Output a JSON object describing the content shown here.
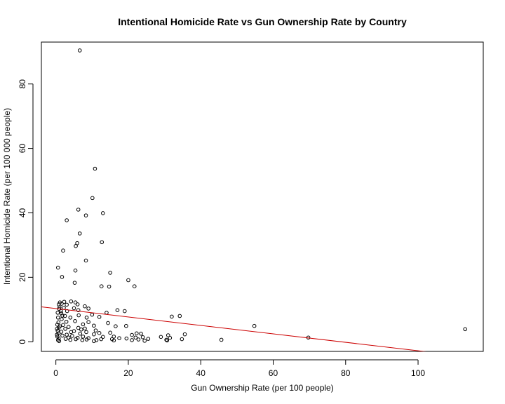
{
  "chart_data": {
    "type": "scatter",
    "title": "Intentional Homicide Rate vs Gun Ownership Rate by Country",
    "xlabel": "Gun Ownership Rate (per 100 people)",
    "ylabel": "Intentional Homicide Rate (per 100 000 people)",
    "xlim": [
      -4,
      118
    ],
    "ylim": [
      -3,
      93
    ],
    "x_ticks": [
      0,
      20,
      40,
      60,
      80,
      100
    ],
    "y_ticks": [
      0,
      20,
      40,
      60,
      80
    ],
    "x_tick_labels": [
      "0",
      "20",
      "40",
      "60",
      "80",
      "100"
    ],
    "y_tick_labels": [
      "0",
      "20",
      "40",
      "60",
      "80"
    ],
    "grid": false,
    "legend": "none",
    "point_color": "#000000",
    "regression_color": "#cc0000",
    "regression_line": {
      "intercept": 10.3,
      "slope": -0.131
    },
    "points": [
      [
        6.6,
        90.4
      ],
      [
        10.8,
        53.7
      ],
      [
        10.1,
        44.6
      ],
      [
        6.2,
        41.0
      ],
      [
        13.0,
        39.9
      ],
      [
        8.3,
        39.2
      ],
      [
        3.0,
        37.7
      ],
      [
        6.6,
        33.6
      ],
      [
        5.9,
        30.6
      ],
      [
        12.7,
        30.9
      ],
      [
        5.5,
        29.7
      ],
      [
        2.0,
        28.3
      ],
      [
        8.3,
        25.2
      ],
      [
        0.6,
        23.0
      ],
      [
        5.4,
        22.1
      ],
      [
        15.0,
        21.4
      ],
      [
        1.7,
        20.1
      ],
      [
        20.0,
        19.1
      ],
      [
        5.2,
        18.3
      ],
      [
        12.6,
        17.2
      ],
      [
        14.7,
        17.1
      ],
      [
        21.7,
        17.2
      ],
      [
        1.1,
        12.2
      ],
      [
        2.3,
        12.4
      ],
      [
        4.2,
        12.5
      ],
      [
        5.4,
        12.2
      ],
      [
        0.8,
        11.6
      ],
      [
        1.6,
        11.8
      ],
      [
        3.0,
        11.5
      ],
      [
        6.0,
        11.6
      ],
      [
        8.0,
        11.0
      ],
      [
        1.0,
        10.7
      ],
      [
        2.2,
        10.5
      ],
      [
        5.0,
        10.4
      ],
      [
        9.0,
        10.3
      ],
      [
        0.9,
        10.2
      ],
      [
        1.4,
        9.5
      ],
      [
        3.1,
        9.5
      ],
      [
        6.2,
        9.8
      ],
      [
        17.0,
        9.8
      ],
      [
        19.0,
        9.5
      ],
      [
        0.5,
        9.0
      ],
      [
        1.5,
        8.8
      ],
      [
        14.0,
        9.0
      ],
      [
        10.0,
        8.4
      ],
      [
        2.5,
        8.0
      ],
      [
        6.3,
        8.2
      ],
      [
        1.8,
        8.1
      ],
      [
        32.0,
        7.8
      ],
      [
        34.2,
        8.0
      ],
      [
        0.6,
        7.5
      ],
      [
        4.0,
        7.5
      ],
      [
        8.5,
        7.5
      ],
      [
        12.0,
        7.7
      ],
      [
        1.6,
        7.0
      ],
      [
        5.3,
        6.4
      ],
      [
        0.7,
        6.0
      ],
      [
        2.9,
        6.2
      ],
      [
        9.0,
        6.1
      ],
      [
        14.4,
        5.8
      ],
      [
        0.4,
        5.3
      ],
      [
        2.0,
        5.2
      ],
      [
        7.5,
        5.4
      ],
      [
        1.1,
        4.8
      ],
      [
        3.5,
        4.6
      ],
      [
        10.5,
        5.0
      ],
      [
        16.5,
        4.8
      ],
      [
        19.4,
        4.9
      ],
      [
        0.8,
        4.4
      ],
      [
        6.2,
        4.3
      ],
      [
        8.0,
        4.1
      ],
      [
        0.3,
        4.0
      ],
      [
        2.6,
        4.0
      ],
      [
        7.0,
        3.8
      ],
      [
        11.0,
        3.5
      ],
      [
        54.8,
        4.9
      ],
      [
        113.0,
        3.9
      ],
      [
        0.5,
        3.4
      ],
      [
        5.0,
        3.3
      ],
      [
        1.5,
        3.1
      ],
      [
        4.2,
        3.0
      ],
      [
        8.4,
        3.0
      ],
      [
        12.0,
        2.7
      ],
      [
        15.0,
        2.8
      ],
      [
        22.3,
        2.6
      ],
      [
        23.5,
        2.5
      ],
      [
        0.7,
        2.6
      ],
      [
        3.0,
        2.2
      ],
      [
        6.7,
        2.5
      ],
      [
        10.5,
        2.3
      ],
      [
        21.0,
        2.1
      ],
      [
        31.0,
        2.0
      ],
      [
        35.6,
        2.3
      ],
      [
        0.3,
        2.2
      ],
      [
        1.8,
        1.9
      ],
      [
        4.5,
        1.8
      ],
      [
        7.5,
        1.6
      ],
      [
        13.0,
        1.5
      ],
      [
        16.0,
        1.6
      ],
      [
        22.0,
        1.3
      ],
      [
        0.4,
        1.6
      ],
      [
        3.5,
        1.3
      ],
      [
        6.0,
        1.2
      ],
      [
        9.0,
        1.1
      ],
      [
        17.5,
        1.1
      ],
      [
        19.5,
        1.0
      ],
      [
        24.0,
        1.4
      ],
      [
        29.0,
        1.5
      ],
      [
        31.5,
        1.2
      ],
      [
        69.7,
        1.3
      ],
      [
        0.8,
        1.0
      ],
      [
        2.7,
        0.9
      ],
      [
        5.5,
        0.8
      ],
      [
        8.5,
        0.7
      ],
      [
        12.5,
        0.8
      ],
      [
        15.5,
        0.8
      ],
      [
        22.8,
        0.7
      ],
      [
        25.5,
        0.9
      ],
      [
        30.5,
        0.6
      ],
      [
        34.8,
        0.8
      ],
      [
        45.7,
        0.6
      ],
      [
        0.6,
        0.5
      ],
      [
        4.0,
        0.6
      ],
      [
        7.3,
        0.5
      ],
      [
        11.2,
        0.5
      ],
      [
        16.0,
        0.4
      ],
      [
        21.0,
        0.5
      ],
      [
        24.5,
        0.3
      ],
      [
        30.7,
        0.4
      ],
      [
        0.9,
        0.2
      ],
      [
        10.5,
        0.2
      ]
    ]
  }
}
